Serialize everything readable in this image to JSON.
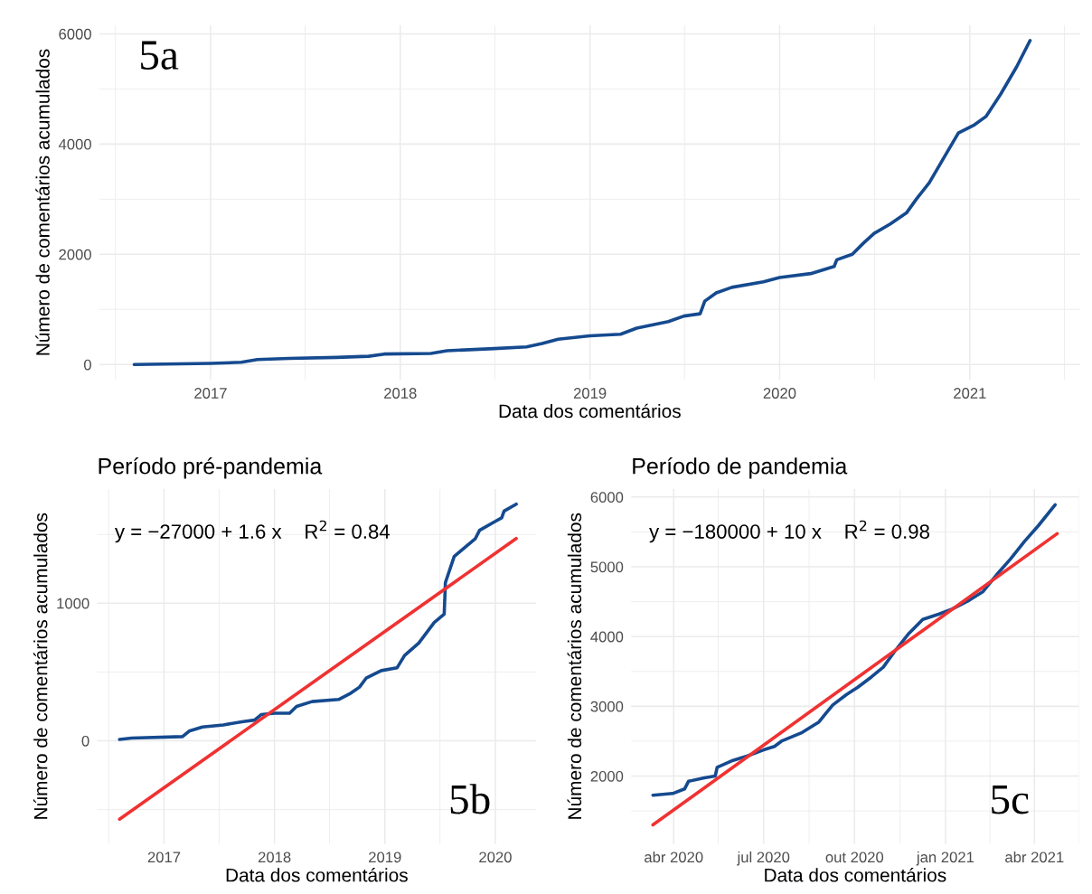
{
  "chart_data": [
    {
      "type": "line",
      "xlabel": "Data dos comentários",
      "ylabel": "Número de comentários acumulados",
      "annotations": [
        "5a"
      ],
      "x": [
        "2016-08-07",
        "2017-01-01",
        "2017-03-01",
        "2017-04-01",
        "2017-06-01",
        "2017-09-01",
        "2017-11-01",
        "2017-12-01",
        "2018-03-01",
        "2018-04-01",
        "2018-07-01",
        "2018-09-01",
        "2018-10-01",
        "2018-11-01",
        "2019-01-01",
        "2019-03-01",
        "2019-04-01",
        "2019-06-01",
        "2019-07-01",
        "2019-08-01",
        "2019-08-10",
        "2019-09-01",
        "2019-10-01",
        "2019-12-01",
        "2020-01-01",
        "2020-03-01",
        "2020-04-15",
        "2020-04-20",
        "2020-05-20",
        "2020-06-10",
        "2020-07-01",
        "2020-08-01",
        "2020-09-01",
        "2020-09-20",
        "2020-10-15",
        "2020-11-15",
        "2020-12-10",
        "2021-01-10",
        "2021-02-01",
        "2021-03-01",
        "2021-04-01",
        "2021-04-27"
      ],
      "series": [
        {
          "color": "#154a8f",
          "values": [
            0,
            20,
            40,
            90,
            110,
            130,
            150,
            190,
            200,
            250,
            290,
            320,
            380,
            460,
            520,
            550,
            660,
            780,
            880,
            920,
            1150,
            1300,
            1400,
            1500,
            1580,
            1650,
            1780,
            1900,
            2000,
            2200,
            2380,
            2550,
            2750,
            3000,
            3300,
            3800,
            4200,
            4350,
            4500,
            4900,
            5400,
            5880
          ]
        }
      ],
      "xlim": [
        "2016-06-01",
        "2021-08-01"
      ],
      "xticks": [
        {
          "value": "2016-07-02",
          "label": null
        },
        {
          "value": "2017-01-01",
          "label": "2017"
        },
        {
          "value": "2017-07-02",
          "label": null
        },
        {
          "value": "2018-01-01",
          "label": "2018"
        },
        {
          "value": "2018-07-02",
          "label": null
        },
        {
          "value": "2019-01-01",
          "label": "2019"
        },
        {
          "value": "2019-07-02",
          "label": null
        },
        {
          "value": "2020-01-01",
          "label": "2020"
        },
        {
          "value": "2020-07-02",
          "label": null
        },
        {
          "value": "2021-01-01",
          "label": "2021"
        },
        {
          "value": "2021-07-02",
          "label": null
        }
      ],
      "ylim": [
        -280,
        6160
      ],
      "yticks": [
        0,
        {
          "value": 1000,
          "label": null
        },
        2000,
        {
          "value": 3000,
          "label": null
        },
        4000,
        {
          "value": 5000,
          "label": null
        },
        6000
      ],
      "grid": true
    },
    {
      "type": "line",
      "title": "Período pré-pandemia",
      "xlabel": "Data dos comentários",
      "ylabel": "Número de comentários acumulados",
      "annotations": [
        "y = −27000 + 1.6 x    R$^{2}$ = 0.84",
        "5b"
      ],
      "x": [
        "2016-08-07",
        "2016-09-16",
        "2017-03-03",
        "2017-03-25",
        "2017-05-08",
        "2017-07-16",
        "2017-09-20",
        "2017-10-27",
        "2017-11-18",
        "2018-01-01",
        "2018-02-20",
        "2018-03-15",
        "2018-05-05",
        "2018-08-01",
        "2018-09-06",
        "2018-10-09",
        "2018-10-31",
        "2018-12-20",
        "2019-02-10",
        "2019-03-07",
        "2019-04-23",
        "2019-06-13",
        "2019-07-16",
        "2019-07-20",
        "2019-08-18",
        "2019-10-27",
        "2019-11-10",
        "2020-01-01",
        "2020-01-22",
        "2020-01-30",
        "2020-03-10"
      ],
      "series": [
        {
          "color": "#154a8f",
          "values": [
            10,
            20,
            30,
            70,
            100,
            115,
            140,
            150,
            190,
            200,
            200,
            250,
            285,
            300,
            340,
            390,
            455,
            510,
            530,
            620,
            710,
            860,
            920,
            1150,
            1340,
            1470,
            1530,
            1595,
            1620,
            1670,
            1720
          ]
        },
        {
          "type": "line",
          "color": "#f03232",
          "x": [
            "2016-08-07",
            "2020-03-10"
          ],
          "values": [
            -570,
            1470
          ]
        }
      ],
      "xlim": [
        "2016-05-25",
        "2020-05-15"
      ],
      "xticks": [
        {
          "value": "2016-07-02",
          "label": null
        },
        {
          "value": "2017-01-01",
          "label": "2017"
        },
        {
          "value": "2017-07-02",
          "label": null
        },
        {
          "value": "2018-01-01",
          "label": "2018"
        },
        {
          "value": "2018-07-02",
          "label": null
        },
        {
          "value": "2019-01-01",
          "label": "2019"
        },
        {
          "value": "2019-07-02",
          "label": null
        },
        {
          "value": "2020-01-01",
          "label": "2020"
        }
      ],
      "ylim": [
        -750,
        1830
      ],
      "yticks": [
        {
          "value": -500,
          "label": null
        },
        0,
        {
          "value": 500,
          "label": null
        },
        1000,
        {
          "value": 1500,
          "label": null
        }
      ],
      "grid": true
    },
    {
      "type": "line",
      "title": "Período de pandemia",
      "xlabel": "Data dos comentários",
      "ylabel": "Número de comentários acumulados",
      "annotations": [
        "y = −180000 + 10 x    R$^{2}$ = 0.98",
        "5c"
      ],
      "x": [
        "2020-03-11",
        "2020-03-31",
        "2020-04-12",
        "2020-04-16",
        "2020-05-02",
        "2020-05-13",
        "2020-05-15",
        "2020-05-31",
        "2020-06-14",
        "2020-07-01",
        "2020-07-12",
        "2020-07-19",
        "2020-08-09",
        "2020-08-26",
        "2020-09-02",
        "2020-09-09",
        "2020-09-23",
        "2020-10-04",
        "2020-10-18",
        "2020-10-30",
        "2020-11-11",
        "2020-11-25",
        "2020-12-09",
        "2020-12-25",
        "2021-01-08",
        "2021-01-25",
        "2021-02-08",
        "2021-02-22",
        "2021-03-08",
        "2021-03-22",
        "2021-04-05",
        "2021-04-22"
      ],
      "series": [
        {
          "color": "#154a8f",
          "values": [
            1726,
            1750,
            1815,
            1925,
            1975,
            2000,
            2125,
            2225,
            2285,
            2375,
            2425,
            2500,
            2625,
            2775,
            2900,
            3020,
            3170,
            3270,
            3420,
            3560,
            3795,
            4045,
            4245,
            4320,
            4395,
            4520,
            4645,
            4890,
            5115,
            5365,
            5590,
            5890
          ]
        },
        {
          "type": "line",
          "color": "#f03232",
          "x": [
            "2020-03-11",
            "2021-04-24"
          ],
          "values": [
            1300,
            5475
          ]
        }
      ],
      "xlim": [
        "2020-02-18",
        "2021-05-16"
      ],
      "xticks": [
        {
          "value": "2020-04-01",
          "label": "abr 2020"
        },
        {
          "value": "2020-05-16",
          "label": null
        },
        {
          "value": "2020-07-01",
          "label": "jul 2020"
        },
        {
          "value": "2020-08-16",
          "label": null
        },
        {
          "value": "2020-10-01",
          "label": "out 2020"
        },
        {
          "value": "2020-11-16",
          "label": null
        },
        {
          "value": "2021-01-01",
          "label": "jan 2021"
        },
        {
          "value": "2021-02-15",
          "label": null
        },
        {
          "value": "2021-04-01",
          "label": "abr 2021"
        },
        {
          "value": "2021-05-16",
          "label": null
        }
      ],
      "ylim": [
        1027,
        6115
      ],
      "yticks": [
        {
          "value": 1500,
          "label": null
        },
        2000,
        {
          "value": 2500,
          "label": null
        },
        3000,
        {
          "value": 3500,
          "label": null
        },
        4000,
        {
          "value": 4500,
          "label": null
        },
        5000,
        {
          "value": 5500,
          "label": null
        },
        6000
      ],
      "grid": true
    }
  ]
}
